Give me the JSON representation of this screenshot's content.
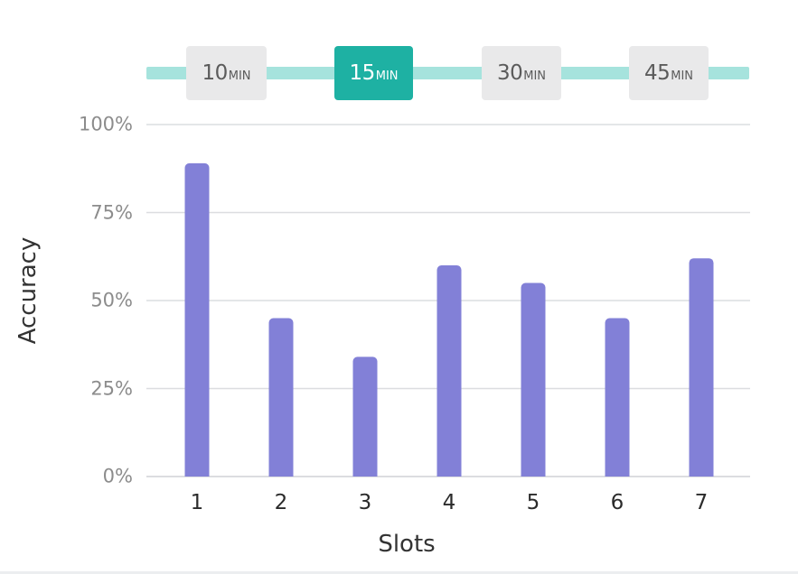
{
  "tabs": [
    {
      "number": "10",
      "unit": "MIN",
      "active": false
    },
    {
      "number": "15",
      "unit": "MIN",
      "active": true
    },
    {
      "number": "30",
      "unit": "MIN",
      "active": false
    },
    {
      "number": "45",
      "unit": "MIN",
      "active": false
    }
  ],
  "colors": {
    "bar": "#8280d7",
    "tab_active": "#1eb1a3",
    "tab_inactive": "#e9e9ea",
    "track": "#a6e3dd",
    "grid": "#dcdde0"
  },
  "chart_data": {
    "type": "bar",
    "categories": [
      "1",
      "2",
      "3",
      "4",
      "5",
      "6",
      "7"
    ],
    "values": [
      89,
      45,
      34,
      60,
      55,
      45,
      62
    ],
    "xlabel": "Slots",
    "ylabel": "Accuracy",
    "ylim": [
      0,
      100
    ],
    "yticks": [
      "0%",
      "25%",
      "50%",
      "75%",
      "100%"
    ],
    "grid": true
  }
}
